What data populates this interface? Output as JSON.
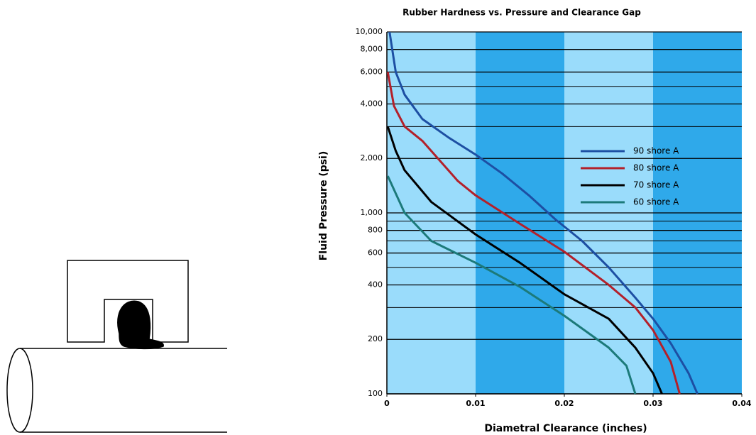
{
  "chart_data": {
    "type": "line",
    "title": "Rubber Hardness vs. Pressure and Clearance Gap",
    "x_label": "Diametral Clearance (inches)",
    "y_label": "Fluid Pressure (psi)",
    "y_scale": "log",
    "xlim": [
      0,
      0.04
    ],
    "xticks": [
      0,
      0.01,
      0.02,
      0.03,
      0.04
    ],
    "ylim": [
      100,
      10000
    ],
    "yticks": [
      100,
      200,
      400,
      600,
      800,
      {
        "value": 1000,
        "label": "1,000"
      },
      {
        "value": 2000,
        "label": "2,000"
      },
      {
        "value": 4000,
        "label": "4,000"
      },
      {
        "value": 6000,
        "label": "6,000"
      },
      {
        "value": 8000,
        "label": "8,000"
      },
      {
        "value": 10000,
        "label": "10,000"
      }
    ],
    "minor_yticks": [
      300,
      500,
      700,
      900,
      3000,
      5000
    ],
    "grid": true,
    "band_colors": [
      "#9adcfb",
      "#2fa9ea"
    ],
    "legend": "right",
    "series": [
      {
        "name": "90 shore A",
        "color": "#1d4fa3",
        "x": [
          0.0003,
          0.001,
          0.002,
          0.004,
          0.007,
          0.01,
          0.013,
          0.016,
          0.019,
          0.022,
          0.025,
          0.028,
          0.03,
          0.032,
          0.034,
          0.035
        ],
        "values": [
          10000,
          6000,
          4500,
          3300,
          2600,
          2100,
          1650,
          1250,
          920,
          700,
          500,
          340,
          260,
          190,
          130,
          100
        ]
      },
      {
        "name": "80 shore A",
        "color": "#b3202a",
        "x": [
          0.0001,
          0.0008,
          0.002,
          0.004,
          0.008,
          0.01,
          0.015,
          0.02,
          0.025,
          0.028,
          0.03,
          0.032,
          0.033
        ],
        "values": [
          6000,
          3900,
          3000,
          2500,
          1500,
          1250,
          870,
          610,
          400,
          300,
          225,
          150,
          100
        ]
      },
      {
        "name": "70 shore A",
        "color": "#000000",
        "x": [
          0.0001,
          0.001,
          0.002,
          0.005,
          0.01,
          0.015,
          0.02,
          0.025,
          0.028,
          0.03,
          0.031
        ],
        "values": [
          3000,
          2200,
          1720,
          1150,
          760,
          530,
          355,
          260,
          180,
          130,
          100
        ]
      },
      {
        "name": "60 shore A",
        "color": "#1c7a7a",
        "x": [
          0.0001,
          0.002,
          0.005,
          0.01,
          0.015,
          0.02,
          0.025,
          0.027,
          0.028
        ],
        "values": [
          1600,
          1000,
          700,
          530,
          390,
          270,
          180,
          143,
          100
        ]
      }
    ]
  }
}
